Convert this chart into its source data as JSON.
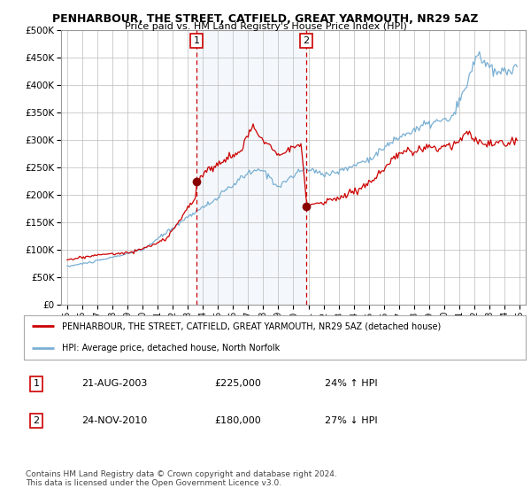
{
  "title": "PENHARBOUR, THE STREET, CATFIELD, GREAT YARMOUTH, NR29 5AZ",
  "subtitle": "Price paid vs. HM Land Registry's House Price Index (HPI)",
  "hpi_label": "HPI: Average price, detached house, North Norfolk",
  "property_label": "PENHARBOUR, THE STREET, CATFIELD, GREAT YARMOUTH, NR29 5AZ (detached house)",
  "red_color": "#cc0000",
  "blue_color": "#7ab0d4",
  "vline_color": "#cc0000",
  "transaction1": {
    "date": "21-AUG-2003",
    "price": 225000,
    "hpi_pct": "24%",
    "direction": "↑"
  },
  "transaction2": {
    "date": "24-NOV-2010",
    "price": 180000,
    "hpi_pct": "27%",
    "direction": "↓"
  },
  "ylim": [
    0,
    500000
  ],
  "yticks": [
    0,
    50000,
    100000,
    150000,
    200000,
    250000,
    300000,
    350000,
    400000,
    450000,
    500000
  ],
  "hpi_anchors": {
    "1995.0": 70000,
    "1997.0": 80000,
    "2000.0": 100000,
    "2002.0": 140000,
    "2003.5": 170000,
    "2004.5": 185000,
    "2007.0": 240000,
    "2008.0": 245000,
    "2009.0": 215000,
    "2010.0": 235000,
    "2010.8": 248000,
    "2012.0": 238000,
    "2013.0": 242000,
    "2015.0": 265000,
    "2017.0": 305000,
    "2019.0": 330000,
    "2020.5": 338000,
    "2021.5": 400000,
    "2022.2": 460000,
    "2022.8": 435000,
    "2023.5": 420000,
    "2024.0": 425000,
    "2024.8": 430000
  },
  "red_anchors": {
    "1995.0": 82000,
    "1997.0": 91000,
    "1999.0": 95000,
    "2000.0": 102000,
    "2001.5": 118000,
    "2003.5": 195000,
    "2003.65": 225000,
    "2004.0": 238000,
    "2005.5": 265000,
    "2006.5": 278000,
    "2007.3": 325000,
    "2008.0": 300000,
    "2009.0": 277000,
    "2010.5": 290000,
    "2010.9": 180000,
    "2011.5": 185000,
    "2012.5": 190000,
    "2014.0": 205000,
    "2015.5": 230000,
    "2017.0": 275000,
    "2019.0": 285000,
    "2020.5": 290000,
    "2021.5": 315000,
    "2022.0": 300000,
    "2022.5": 295000,
    "2023.0": 290000,
    "2024.0": 295000,
    "2024.8": 300000
  },
  "copyright_text": "Contains HM Land Registry data © Crown copyright and database right 2024.\nThis data is licensed under the Open Government Licence v3.0."
}
